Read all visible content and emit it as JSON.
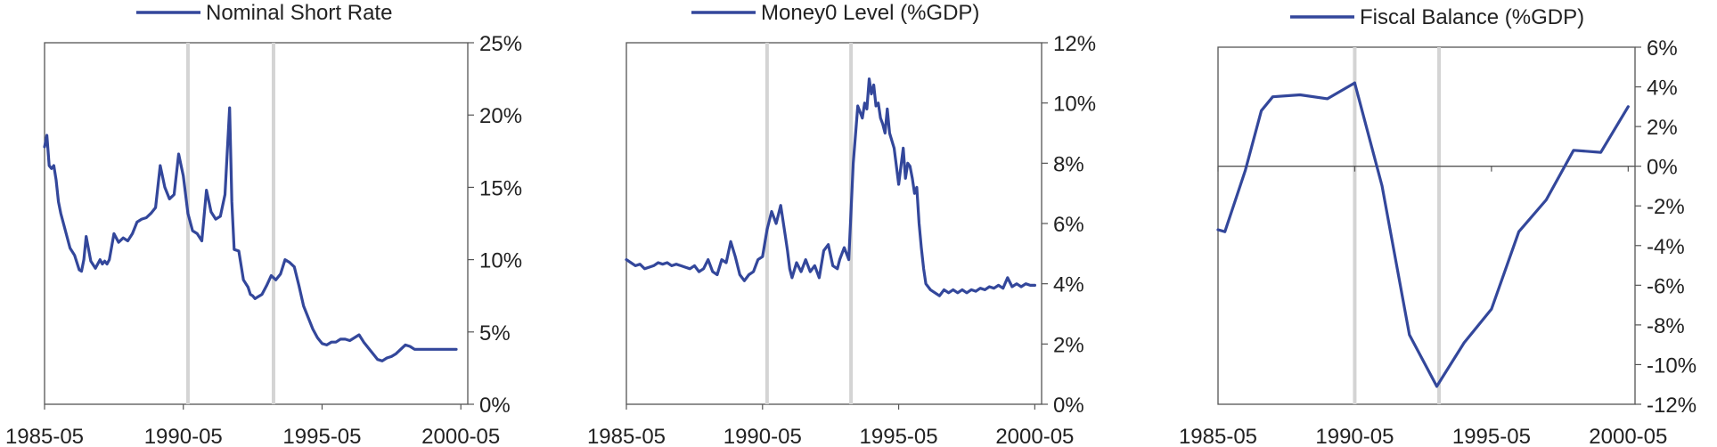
{
  "colors": {
    "series": "#33479b",
    "axis": "#555555",
    "marker": "#d4d4d4"
  },
  "chart_data": [
    {
      "type": "line",
      "legend": "Nominal Short Rate",
      "ylim": [
        0,
        25
      ],
      "yticks": [
        "0%",
        "5%",
        "10%",
        "15%",
        "20%",
        "25%"
      ],
      "yaxis_side": "right",
      "x_range": [
        "1985-05",
        "2000-08"
      ],
      "xticks": [
        "1985-05",
        "1990-05",
        "1995-05",
        "2000-05"
      ],
      "event_lines": [
        "1990-07",
        "1993-08"
      ],
      "series": [
        {
          "x": [
            "1985-05",
            "1985-06",
            "1985-07",
            "1985-08",
            "1985-09",
            "1985-10",
            "1985-11",
            "1985-12",
            "1986-02",
            "1986-04",
            "1986-06",
            "1986-08",
            "1986-09",
            "1986-10",
            "1986-11",
            "1987-01",
            "1987-03",
            "1987-05",
            "1987-06",
            "1987-07",
            "1987-08",
            "1987-09",
            "1987-11",
            "1988-01",
            "1988-03",
            "1988-05",
            "1988-07",
            "1988-09",
            "1988-11",
            "1989-01",
            "1989-03",
            "1989-05",
            "1989-07",
            "1989-09",
            "1989-11",
            "1990-01",
            "1990-03",
            "1990-05",
            "1990-07",
            "1990-09",
            "1990-11",
            "1991-01",
            "1991-03",
            "1991-05",
            "1991-07",
            "1991-09",
            "1991-11",
            "1992-01",
            "1992-02",
            "1992-03",
            "1992-05",
            "1992-07",
            "1992-09",
            "1992-10",
            "1992-11",
            "1992-12",
            "1993-01",
            "1993-03",
            "1993-05",
            "1993-07",
            "1993-09",
            "1993-11",
            "1994-01",
            "1994-03",
            "1994-05",
            "1994-07",
            "1994-09",
            "1994-11",
            "1995-01",
            "1995-03",
            "1995-05",
            "1995-07",
            "1995-09",
            "1995-11",
            "1996-01",
            "1996-03",
            "1996-05",
            "1996-07",
            "1996-09",
            "1996-11",
            "1997-01",
            "1997-03",
            "1997-05",
            "1997-07",
            "1997-09",
            "1997-11",
            "1998-01",
            "1998-03",
            "1998-05",
            "1998-07",
            "1998-09",
            "1998-11",
            "1999-01",
            "1999-03",
            "1999-05",
            "1999-07",
            "1999-09",
            "1999-11",
            "2000-01",
            "2000-03"
          ],
          "values": [
            17.8,
            18.6,
            16.5,
            16.3,
            16.5,
            15.5,
            14.0,
            13.2,
            12.0,
            10.8,
            10.3,
            9.3,
            9.2,
            10.0,
            11.6,
            9.9,
            9.4,
            10.0,
            9.7,
            9.9,
            9.7,
            10.0,
            11.8,
            11.2,
            11.5,
            11.3,
            11.8,
            12.6,
            12.8,
            12.9,
            13.2,
            13.6,
            16.5,
            15.0,
            14.2,
            14.5,
            17.3,
            15.8,
            13.2,
            12.0,
            11.8,
            11.3,
            14.8,
            13.3,
            12.8,
            13.0,
            14.5,
            20.5,
            14.0,
            10.7,
            10.6,
            8.6,
            8.1,
            7.6,
            7.5,
            7.3,
            7.4,
            7.6,
            8.2,
            8.9,
            8.6,
            9.0,
            10.0,
            9.8,
            9.5,
            8.2,
            6.8,
            6.0,
            5.2,
            4.6,
            4.2,
            4.1,
            4.3,
            4.3,
            4.5,
            4.5,
            4.4,
            4.6,
            4.8,
            4.3,
            3.9,
            3.5,
            3.1,
            3.0,
            3.2,
            3.3,
            3.5,
            3.8,
            4.1,
            4.0,
            3.8,
            3.8,
            3.8,
            3.8,
            3.8,
            3.8,
            3.8,
            3.8,
            3.8,
            3.8
          ]
        }
      ]
    },
    {
      "type": "line",
      "legend": "Money0 Level (%GDP)",
      "ylim": [
        0,
        12
      ],
      "yticks": [
        "0%",
        "2%",
        "4%",
        "6%",
        "8%",
        "10%",
        "12%"
      ],
      "yaxis_side": "right",
      "x_range": [
        "1985-05",
        "2000-08"
      ],
      "xticks": [
        "1985-05",
        "1990-05",
        "1995-05",
        "2000-05"
      ],
      "event_lines": [
        "1990-07",
        "1993-08"
      ],
      "series": [
        {
          "x": [
            "1985-05",
            "1985-07",
            "1985-09",
            "1985-11",
            "1986-01",
            "1986-03",
            "1986-05",
            "1986-07",
            "1986-09",
            "1986-11",
            "1987-01",
            "1987-03",
            "1987-05",
            "1987-07",
            "1987-09",
            "1987-11",
            "1988-01",
            "1988-03",
            "1988-05",
            "1988-07",
            "1988-09",
            "1988-11",
            "1989-01",
            "1989-03",
            "1989-05",
            "1989-07",
            "1989-09",
            "1989-11",
            "1990-01",
            "1990-02",
            "1990-03",
            "1990-05",
            "1990-07",
            "1990-09",
            "1990-11",
            "1991-01",
            "1991-03",
            "1991-04",
            "1991-05",
            "1991-06",
            "1991-08",
            "1991-10",
            "1991-12",
            "1992-02",
            "1992-04",
            "1992-06",
            "1992-08",
            "1992-10",
            "1992-12",
            "1993-02",
            "1993-03",
            "1993-05",
            "1993-07",
            "1993-09",
            "1993-11",
            "1994-01",
            "1994-02",
            "1994-03",
            "1994-04",
            "1994-05",
            "1994-06",
            "1994-07",
            "1994-08",
            "1994-09",
            "1994-10",
            "1994-11",
            "1994-12",
            "1995-01",
            "1995-03",
            "1995-05",
            "1995-07",
            "1995-08",
            "1995-09",
            "1995-10",
            "1995-11",
            "1995-12",
            "1996-01",
            "1996-02",
            "1996-03",
            "1996-04",
            "1996-05",
            "1996-07",
            "1996-09",
            "1996-11",
            "1997-01",
            "1997-03",
            "1997-05",
            "1997-07",
            "1997-09",
            "1997-11",
            "1998-01",
            "1998-03",
            "1998-05",
            "1998-07",
            "1998-09",
            "1998-11",
            "1999-01",
            "1999-03",
            "1999-05",
            "1999-07",
            "1999-09",
            "1999-11",
            "2000-01",
            "2000-03",
            "2000-05"
          ],
          "values": [
            4.8,
            4.7,
            4.6,
            4.65,
            4.5,
            4.55,
            4.6,
            4.7,
            4.65,
            4.7,
            4.6,
            4.65,
            4.6,
            4.55,
            4.5,
            4.6,
            4.4,
            4.5,
            4.8,
            4.4,
            4.3,
            4.8,
            4.7,
            5.4,
            4.9,
            4.3,
            4.1,
            4.3,
            4.4,
            4.6,
            4.8,
            4.9,
            5.8,
            6.4,
            6.0,
            6.6,
            5.6,
            5.1,
            4.5,
            4.2,
            4.7,
            4.4,
            4.8,
            4.4,
            4.6,
            4.2,
            5.1,
            5.3,
            4.6,
            4.5,
            4.8,
            5.2,
            4.8,
            8.0,
            9.9,
            9.5,
            10.0,
            9.8,
            10.8,
            10.3,
            10.6,
            9.9,
            10.0,
            9.5,
            9.3,
            9.0,
            9.8,
            9.0,
            8.5,
            7.3,
            8.5,
            7.5,
            8.0,
            7.9,
            7.5,
            7.0,
            7.2,
            6.0,
            5.2,
            4.5,
            4.0,
            3.8,
            3.7,
            3.6,
            3.8,
            3.7,
            3.8,
            3.7,
            3.8,
            3.7,
            3.8,
            3.75,
            3.85,
            3.8,
            3.9,
            3.85,
            3.95,
            3.85,
            4.2,
            3.9,
            4.0,
            3.9,
            4.0,
            3.95,
            3.95
          ]
        }
      ]
    },
    {
      "type": "line",
      "legend": "Fiscal Balance (%GDP)",
      "ylim": [
        -12,
        6
      ],
      "yticks": [
        "-12%",
        "-10%",
        "-8%",
        "-6%",
        "-4%",
        "-2%",
        "0%",
        "2%",
        "4%",
        "6%"
      ],
      "yaxis_side": "right",
      "x_range": [
        "1985-05",
        "2000-08"
      ],
      "xticks": [
        "1985-05",
        "1990-05",
        "1995-05",
        "2000-05"
      ],
      "event_lines": [
        "1990-05",
        "1993-06"
      ],
      "series": [
        {
          "x": [
            "1985-05",
            "1985-08",
            "1986-05",
            "1986-12",
            "1987-05",
            "1988-05",
            "1989-05",
            "1990-05",
            "1991-05",
            "1992-05",
            "1993-05",
            "1994-05",
            "1995-05",
            "1996-05",
            "1997-05",
            "1998-05",
            "1999-05",
            "2000-05"
          ],
          "values": [
            -3.2,
            -3.3,
            -0.2,
            2.8,
            3.5,
            3.6,
            3.4,
            4.2,
            -1.0,
            -8.5,
            -11.1,
            -8.9,
            -7.2,
            -3.3,
            -1.7,
            0.8,
            0.7,
            3.0
          ]
        }
      ]
    }
  ]
}
